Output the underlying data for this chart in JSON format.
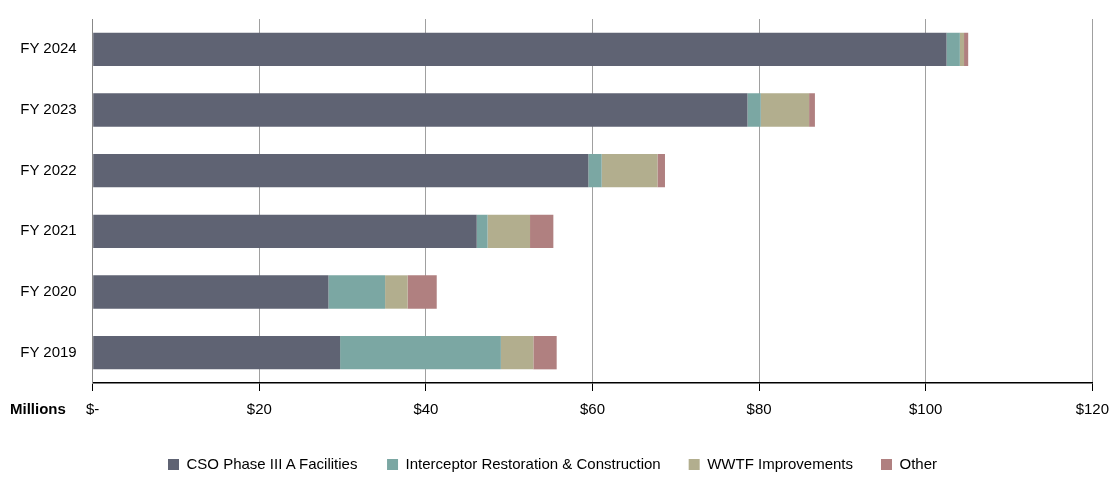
{
  "chart_data": {
    "type": "bar",
    "orientation": "horizontal",
    "stacked": true,
    "xlabel": "Millions",
    "categories": [
      "FY 2024",
      "FY 2023",
      "FY 2022",
      "FY 2021",
      "FY 2020",
      "FY 2019"
    ],
    "series": [
      {
        "name": "CSO Phase III A Facilities",
        "color": "#5f6373",
        "values": [
          102.5,
          78.6,
          59.5,
          46.1,
          28.3,
          29.7
        ]
      },
      {
        "name": "Interceptor Restoration & Construction",
        "color": "#7ba7a3",
        "values": [
          1.6,
          1.6,
          1.6,
          1.3,
          6.8,
          19.3
        ]
      },
      {
        "name": "WWTF Improvements",
        "color": "#b2ae8e",
        "values": [
          0.5,
          5.8,
          6.7,
          5.1,
          2.7,
          3.9
        ]
      },
      {
        "name": "Other",
        "color": "#b08080",
        "values": [
          0.5,
          0.7,
          0.9,
          2.8,
          3.5,
          2.8
        ]
      }
    ],
    "xlim": [
      0,
      120
    ],
    "xticks": [
      {
        "value": 0,
        "label": "$-"
      },
      {
        "value": 20,
        "label": "$20"
      },
      {
        "value": 40,
        "label": "$40"
      },
      {
        "value": 60,
        "label": "$60"
      },
      {
        "value": 80,
        "label": "$80"
      },
      {
        "value": 100,
        "label": "$100"
      },
      {
        "value": 120,
        "label": "$120"
      }
    ],
    "grid": "x",
    "legend": "bottom"
  }
}
